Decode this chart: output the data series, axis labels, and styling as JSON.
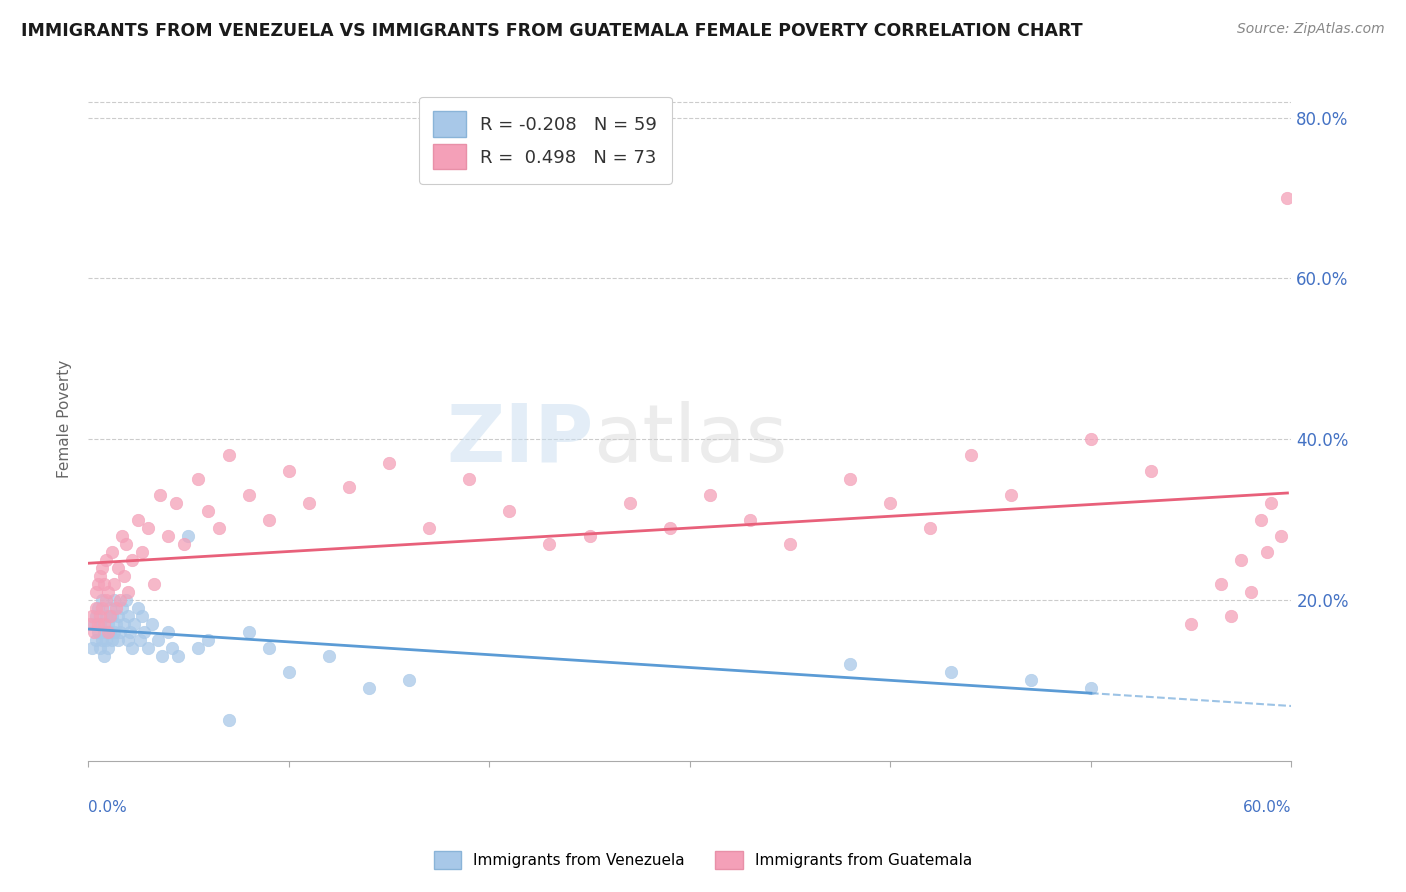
{
  "title": "IMMIGRANTS FROM VENEZUELA VS IMMIGRANTS FROM GUATEMALA FEMALE POVERTY CORRELATION CHART",
  "source": "Source: ZipAtlas.com",
  "ylabel": "Female Poverty",
  "y_tick_vals": [
    0.2,
    0.4,
    0.6,
    0.8
  ],
  "x_range": [
    0.0,
    0.6
  ],
  "y_range": [
    0.0,
    0.85
  ],
  "venezuela": {
    "R": -0.208,
    "N": 59,
    "color": "#a8c8e8",
    "line_color": "#5b9bd5",
    "label": "Immigrants from Venezuela"
  },
  "guatemala": {
    "R": 0.498,
    "N": 73,
    "color": "#f4a0b8",
    "line_color": "#e8607a",
    "label": "Immigrants from Guatemala"
  },
  "watermark_text": "ZIPatlas",
  "background_color": "#ffffff",
  "grid_color": "#cccccc",
  "venezuela_x": [
    0.002,
    0.003,
    0.004,
    0.004,
    0.005,
    0.005,
    0.006,
    0.006,
    0.007,
    0.007,
    0.008,
    0.008,
    0.009,
    0.009,
    0.01,
    0.01,
    0.011,
    0.011,
    0.012,
    0.012,
    0.013,
    0.013,
    0.014,
    0.015,
    0.015,
    0.016,
    0.017,
    0.018,
    0.019,
    0.02,
    0.02,
    0.021,
    0.022,
    0.023,
    0.025,
    0.026,
    0.027,
    0.028,
    0.03,
    0.032,
    0.035,
    0.037,
    0.04,
    0.042,
    0.045,
    0.05,
    0.055,
    0.06,
    0.07,
    0.08,
    0.09,
    0.1,
    0.12,
    0.14,
    0.16,
    0.38,
    0.43,
    0.47,
    0.5
  ],
  "venezuela_y": [
    0.14,
    0.17,
    0.15,
    0.18,
    0.16,
    0.19,
    0.14,
    0.17,
    0.15,
    0.2,
    0.13,
    0.16,
    0.15,
    0.18,
    0.14,
    0.17,
    0.16,
    0.19,
    0.15,
    0.18,
    0.16,
    0.2,
    0.17,
    0.15,
    0.18,
    0.16,
    0.19,
    0.17,
    0.2,
    0.15,
    0.18,
    0.16,
    0.14,
    0.17,
    0.19,
    0.15,
    0.18,
    0.16,
    0.14,
    0.17,
    0.15,
    0.13,
    0.16,
    0.14,
    0.13,
    0.28,
    0.14,
    0.15,
    0.05,
    0.16,
    0.14,
    0.11,
    0.13,
    0.09,
    0.1,
    0.12,
    0.11,
    0.1,
    0.09
  ],
  "guatemala_x": [
    0.001,
    0.002,
    0.003,
    0.004,
    0.004,
    0.005,
    0.005,
    0.006,
    0.006,
    0.007,
    0.007,
    0.008,
    0.008,
    0.009,
    0.009,
    0.01,
    0.01,
    0.011,
    0.012,
    0.013,
    0.014,
    0.015,
    0.016,
    0.017,
    0.018,
    0.019,
    0.02,
    0.022,
    0.025,
    0.027,
    0.03,
    0.033,
    0.036,
    0.04,
    0.044,
    0.048,
    0.055,
    0.06,
    0.065,
    0.07,
    0.08,
    0.09,
    0.1,
    0.11,
    0.13,
    0.15,
    0.17,
    0.19,
    0.21,
    0.23,
    0.25,
    0.27,
    0.29,
    0.31,
    0.33,
    0.35,
    0.38,
    0.4,
    0.42,
    0.44,
    0.46,
    0.5,
    0.53,
    0.55,
    0.565,
    0.57,
    0.575,
    0.58,
    0.585,
    0.588,
    0.59,
    0.595,
    0.598
  ],
  "guatemala_y": [
    0.17,
    0.18,
    0.16,
    0.19,
    0.21,
    0.17,
    0.22,
    0.18,
    0.23,
    0.19,
    0.24,
    0.17,
    0.22,
    0.2,
    0.25,
    0.16,
    0.21,
    0.18,
    0.26,
    0.22,
    0.19,
    0.24,
    0.2,
    0.28,
    0.23,
    0.27,
    0.21,
    0.25,
    0.3,
    0.26,
    0.29,
    0.22,
    0.33,
    0.28,
    0.32,
    0.27,
    0.35,
    0.31,
    0.29,
    0.38,
    0.33,
    0.3,
    0.36,
    0.32,
    0.34,
    0.37,
    0.29,
    0.35,
    0.31,
    0.27,
    0.28,
    0.32,
    0.29,
    0.33,
    0.3,
    0.27,
    0.35,
    0.32,
    0.29,
    0.38,
    0.33,
    0.4,
    0.36,
    0.17,
    0.22,
    0.18,
    0.25,
    0.21,
    0.3,
    0.26,
    0.32,
    0.28,
    0.7
  ]
}
